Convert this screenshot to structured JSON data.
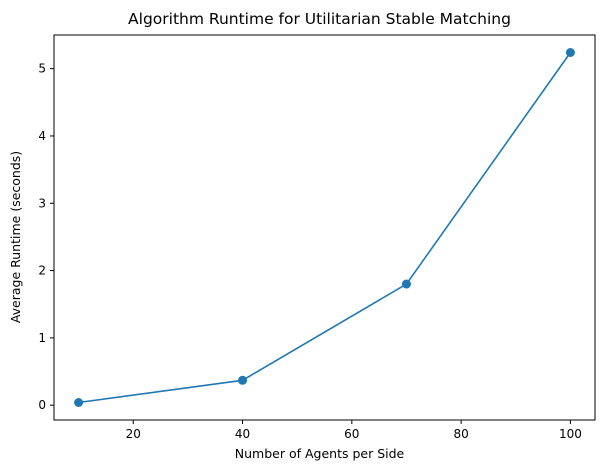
{
  "chart_data": {
    "type": "line",
    "title": "Algorithm Runtime for Utilitarian Stable Matching",
    "xlabel": "Number of Agents per Side",
    "ylabel": "Average Runtime (seconds)",
    "x": [
      10,
      40,
      70,
      100
    ],
    "series": [
      {
        "values": [
          0.04,
          0.37,
          1.8,
          5.24
        ],
        "color": "#1f77b4",
        "marker": "circle"
      }
    ],
    "xlim": [
      5.5,
      104.5
    ],
    "ylim": [
      -0.22,
      5.5
    ],
    "xticks": [
      20,
      40,
      60,
      80,
      100
    ],
    "yticks": [
      0,
      1,
      2,
      3,
      4,
      5
    ],
    "grid": false,
    "legend": "none"
  }
}
